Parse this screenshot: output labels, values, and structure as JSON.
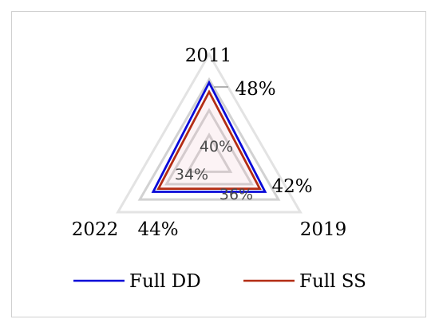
{
  "chart_data": {
    "type": "radar",
    "categories": [
      "2011",
      "2019",
      "2022"
    ],
    "axis_ticks": [
      "34%",
      "36%",
      "40%",
      "42%",
      "44%",
      "48%"
    ],
    "rlim": [
      34,
      48
    ],
    "grid": true,
    "legend_position": "bottom",
    "series": [
      {
        "name": "Full DD",
        "color": "#0a0ad8",
        "values": [
          46.5,
          44.5,
          44.5
        ]
      },
      {
        "name": "Full SS",
        "color": "#b32d14",
        "values": [
          45.0,
          43.5,
          43.5
        ]
      }
    ]
  }
}
